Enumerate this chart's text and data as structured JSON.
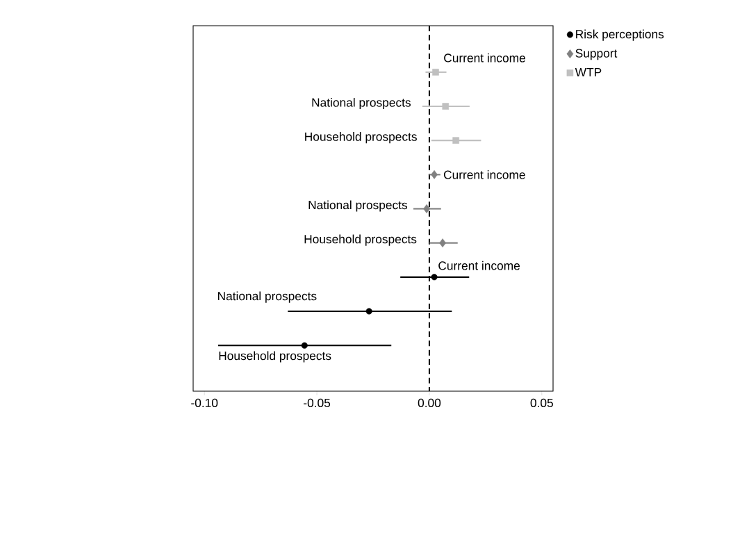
{
  "chart_data": {
    "type": "scatter",
    "orientation": "horizontal",
    "categories": [
      "Current income",
      "National prospects",
      "Household prospects",
      "Current income",
      "National prospects",
      "Household prospects",
      "Current income",
      "National prospects",
      "Household prospects"
    ],
    "series": [
      {
        "name": "Risk perceptions",
        "color": "#000000",
        "marker": "circle",
        "values": [
          null,
          null,
          null,
          null,
          null,
          null,
          0.0022,
          -0.0268,
          -0.0555
        ],
        "errors": [
          null,
          null,
          null,
          null,
          null,
          null,
          [
            -0.0129,
            0.0177
          ],
          [
            -0.0629,
            0.01
          ],
          [
            -0.0939,
            -0.0169
          ]
        ]
      },
      {
        "name": "Support",
        "color": "#808080",
        "marker": "diamond",
        "values": [
          null,
          null,
          null,
          0.0022,
          -0.0012,
          0.0059,
          null,
          null,
          null
        ],
        "errors": [
          null,
          null,
          null,
          [
            0.0,
            0.0049
          ],
          [
            -0.0071,
            0.0052
          ],
          [
            0.0001,
            0.0126
          ],
          null,
          null,
          null
        ]
      },
      {
        "name": "WTP",
        "color": "#c0c0c0",
        "marker": "square",
        "values": [
          0.0028,
          0.0072,
          0.0118,
          null,
          null,
          null,
          null,
          null,
          null
        ],
        "errors": [
          [
            -0.0017,
            0.0076
          ],
          [
            -0.0031,
            0.0179
          ],
          [
            0.0009,
            0.023
          ],
          null,
          null,
          null,
          null,
          null,
          null
        ]
      }
    ],
    "xlim": [
      -0.105,
      0.055
    ],
    "xticks": [
      {
        "value": -0.1,
        "label": "-0.10"
      },
      {
        "value": -0.05,
        "label": "-0.05"
      },
      {
        "value": 0,
        "label": "0.00"
      },
      {
        "value": 0.05,
        "label": "0.05"
      }
    ],
    "ref_lines": [
      {
        "axis": "x",
        "value": 0,
        "color": "#000000",
        "line_style": "dashed"
      }
    ],
    "legend": "top right",
    "grid": false
  }
}
